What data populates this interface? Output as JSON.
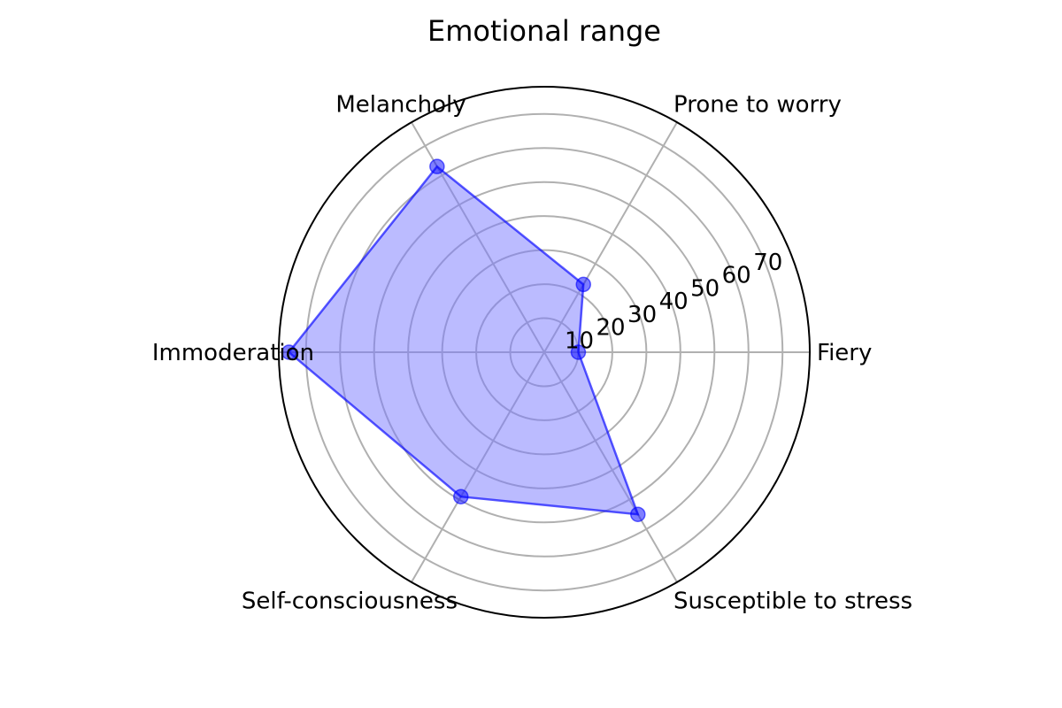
{
  "chart_data": {
    "type": "radar",
    "title": "Emotional range",
    "categories": [
      "Fiery",
      "Prone to worry",
      "Melancholy",
      "Immoderation",
      "Self-consciousness",
      "Susceptible to stress"
    ],
    "series": [
      {
        "values": [
          10,
          23,
          63,
          75,
          49,
          55
        ]
      }
    ],
    "radial_ticks": [
      10,
      20,
      30,
      40,
      50,
      60,
      70
    ],
    "rlim": [
      0,
      78
    ],
    "grid": true,
    "colors": {
      "series": "#0000ff",
      "fill": "#7878ff",
      "grid": "#b0b0b0",
      "frame": "#000000"
    }
  }
}
